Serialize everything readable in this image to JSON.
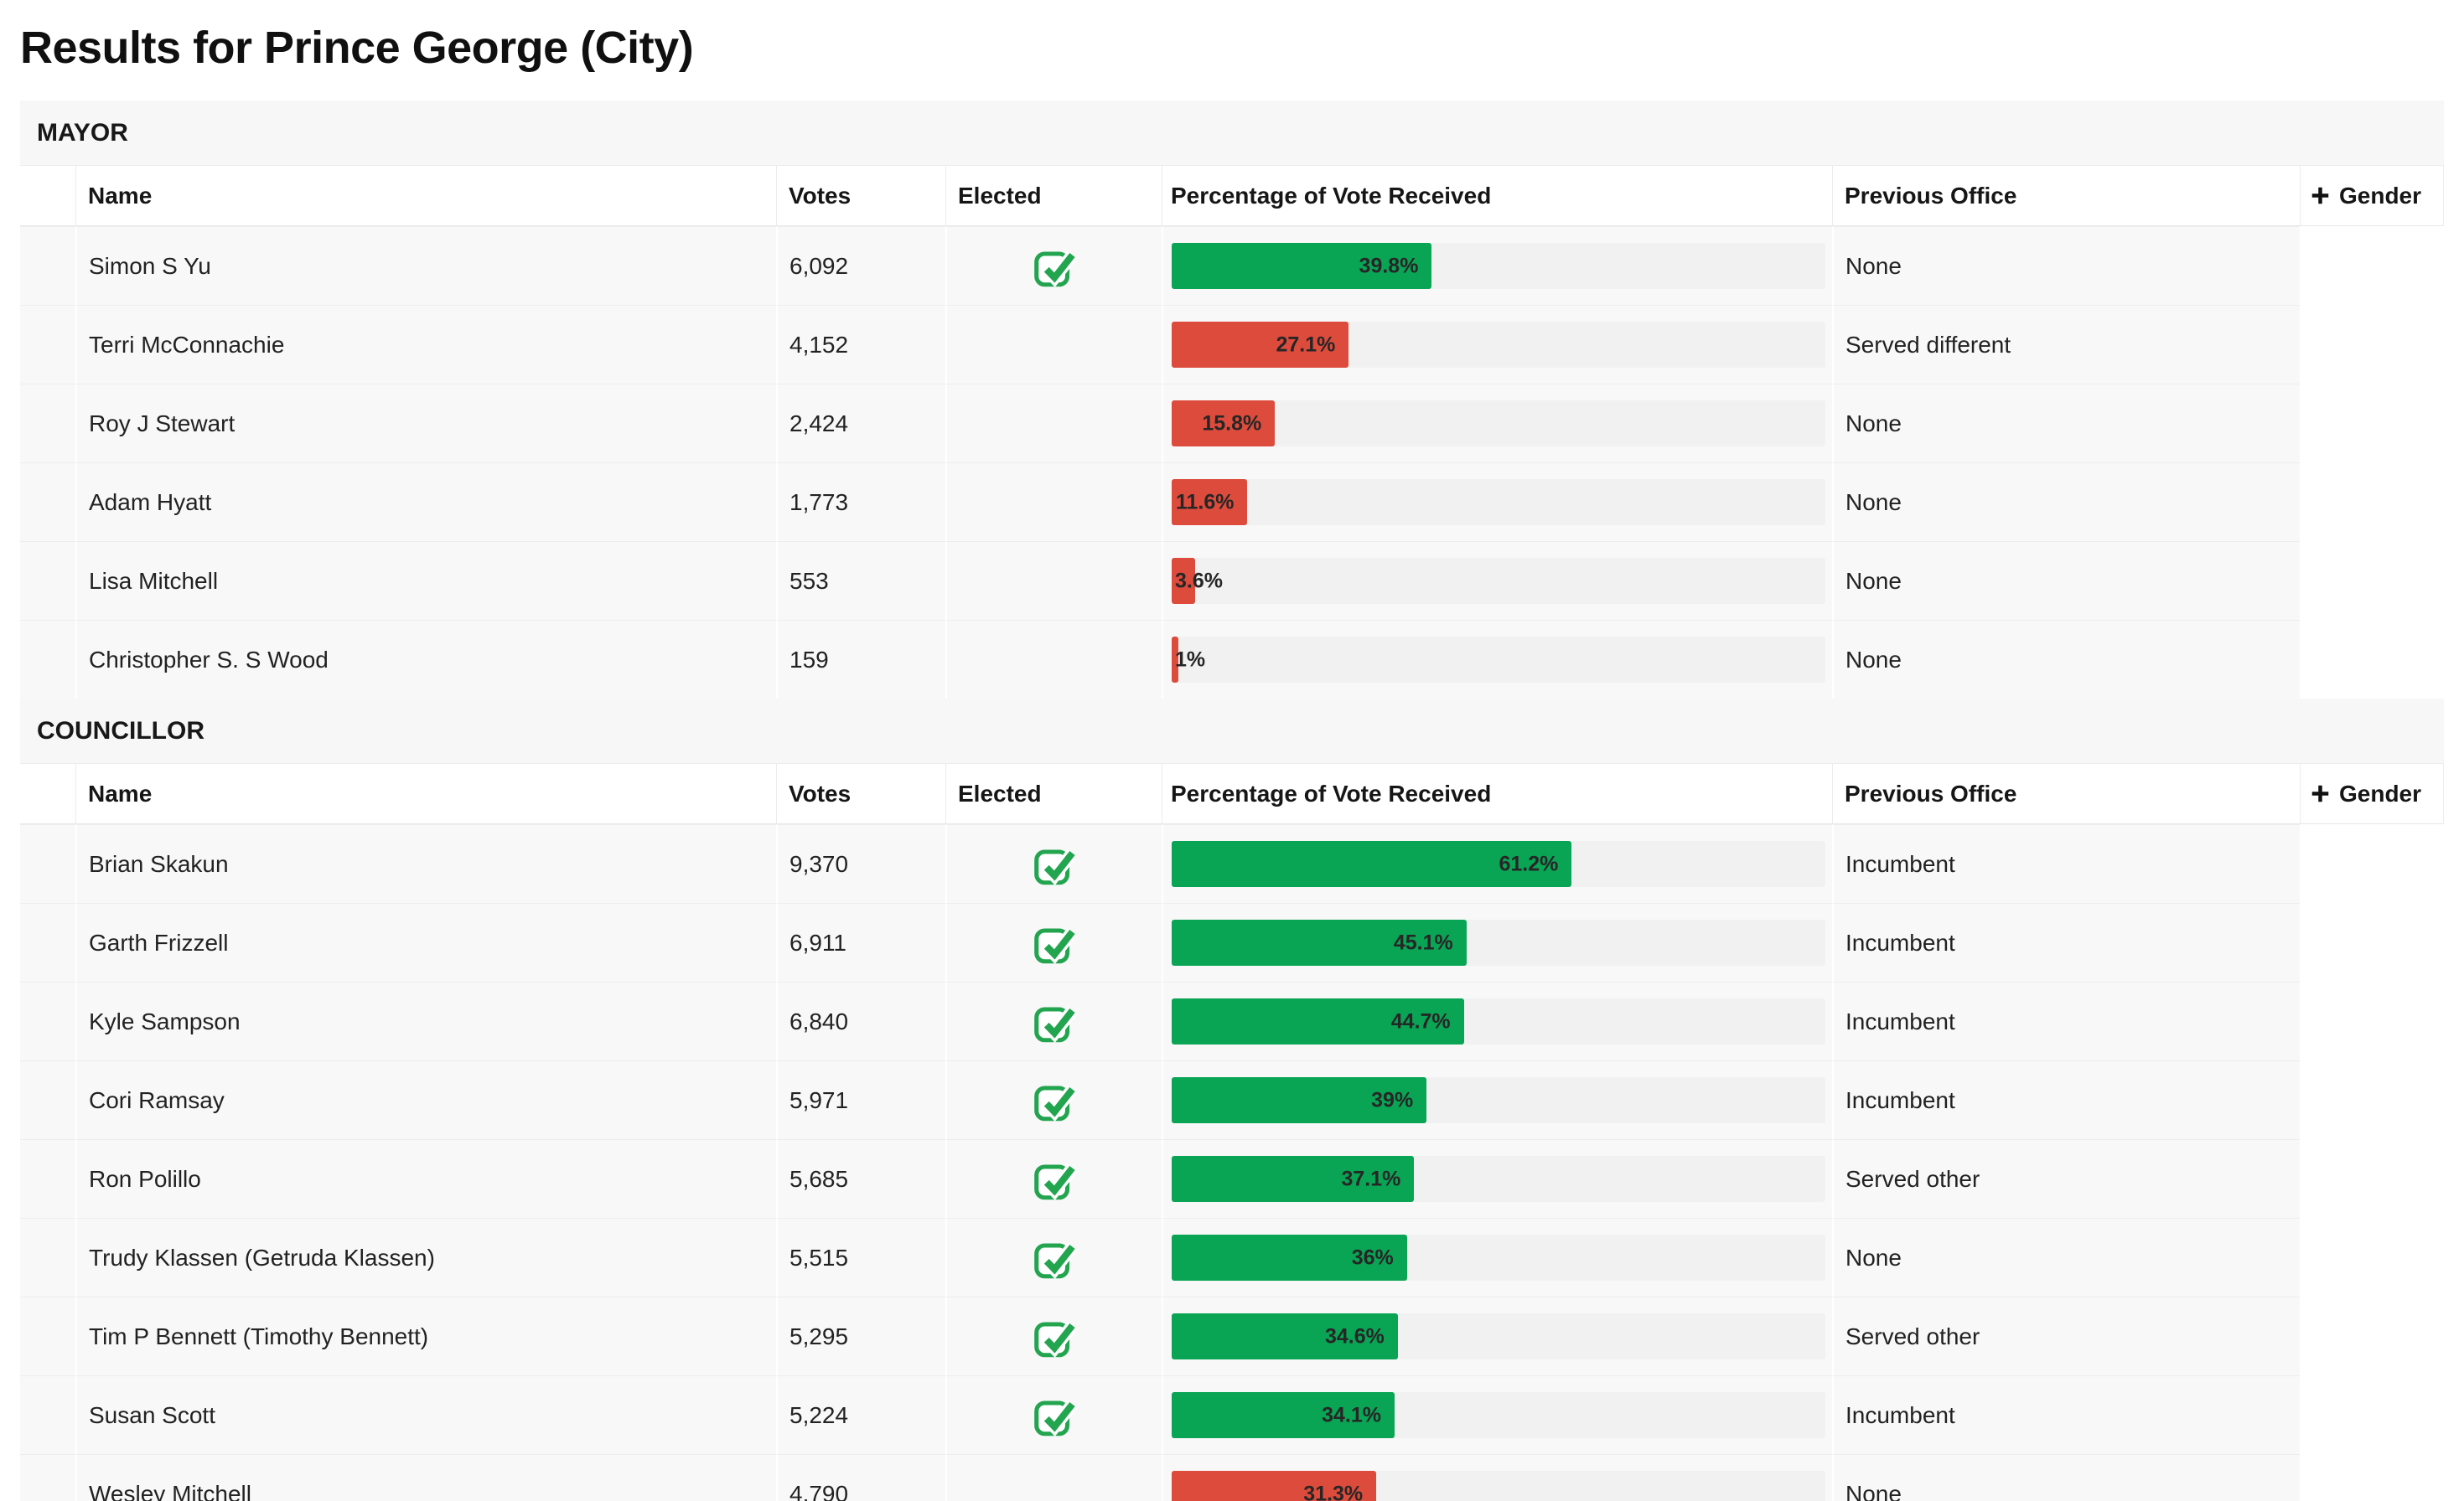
{
  "page": {
    "title": "Results for Prince George (City)"
  },
  "columns": {
    "name": "Name",
    "votes": "Votes",
    "elected": "Elected",
    "percentage": "Percentage of Vote Received",
    "previous_office": "Previous Office",
    "gender": "Gender",
    "gender_icon": "plus-icon"
  },
  "colors": {
    "elected_bar": "#0aa455",
    "not_elected_bar": "#dc4b3c",
    "bar_track": "#f1f1f1",
    "row_background": "#f8f8f8",
    "section_background": "#f7f7f7",
    "check_icon": "#23a550"
  },
  "icons": {
    "elected": "checked-checkbox-icon",
    "gender_expand": "plus-icon"
  },
  "sections": [
    {
      "title": "MAYOR",
      "rows": [
        {
          "name": "Simon S Yu",
          "votes": "6,092",
          "elected": true,
          "percent": 39.8,
          "percent_label": "39.8%",
          "previous_office": "None"
        },
        {
          "name": "Terri McConnachie",
          "votes": "4,152",
          "elected": false,
          "percent": 27.1,
          "percent_label": "27.1%",
          "previous_office": "Served different"
        },
        {
          "name": "Roy J Stewart",
          "votes": "2,424",
          "elected": false,
          "percent": 15.8,
          "percent_label": "15.8%",
          "previous_office": "None"
        },
        {
          "name": "Adam Hyatt",
          "votes": "1,773",
          "elected": false,
          "percent": 11.6,
          "percent_label": "11.6%",
          "previous_office": "None"
        },
        {
          "name": "Lisa Mitchell",
          "votes": "553",
          "elected": false,
          "percent": 3.6,
          "percent_label": "3.6%",
          "previous_office": "None"
        },
        {
          "name": "Christopher S. S Wood",
          "votes": "159",
          "elected": false,
          "percent": 1,
          "percent_label": "1%",
          "previous_office": "None"
        }
      ]
    },
    {
      "title": "COUNCILLOR",
      "rows": [
        {
          "name": "Brian Skakun",
          "votes": "9,370",
          "elected": true,
          "percent": 61.2,
          "percent_label": "61.2%",
          "previous_office": "Incumbent"
        },
        {
          "name": "Garth Frizzell",
          "votes": "6,911",
          "elected": true,
          "percent": 45.1,
          "percent_label": "45.1%",
          "previous_office": "Incumbent"
        },
        {
          "name": "Kyle Sampson",
          "votes": "6,840",
          "elected": true,
          "percent": 44.7,
          "percent_label": "44.7%",
          "previous_office": "Incumbent"
        },
        {
          "name": "Cori Ramsay",
          "votes": "5,971",
          "elected": true,
          "percent": 39,
          "percent_label": "39%",
          "previous_office": "Incumbent"
        },
        {
          "name": "Ron Polillo",
          "votes": "5,685",
          "elected": true,
          "percent": 37.1,
          "percent_label": "37.1%",
          "previous_office": "Served other"
        },
        {
          "name": "Trudy Klassen (Getruda Klassen)",
          "votes": "5,515",
          "elected": true,
          "percent": 36,
          "percent_label": "36%",
          "previous_office": "None"
        },
        {
          "name": "Tim P Bennett (Timothy Bennett)",
          "votes": "5,295",
          "elected": true,
          "percent": 34.6,
          "percent_label": "34.6%",
          "previous_office": "Served other"
        },
        {
          "name": "Susan Scott",
          "votes": "5,224",
          "elected": true,
          "percent": 34.1,
          "percent_label": "34.1%",
          "previous_office": "Incumbent"
        },
        {
          "name": "Wesley Mitchell",
          "votes": "4,790",
          "elected": false,
          "percent": 31.3,
          "percent_label": "31.3%",
          "previous_office": "None"
        }
      ]
    }
  ]
}
